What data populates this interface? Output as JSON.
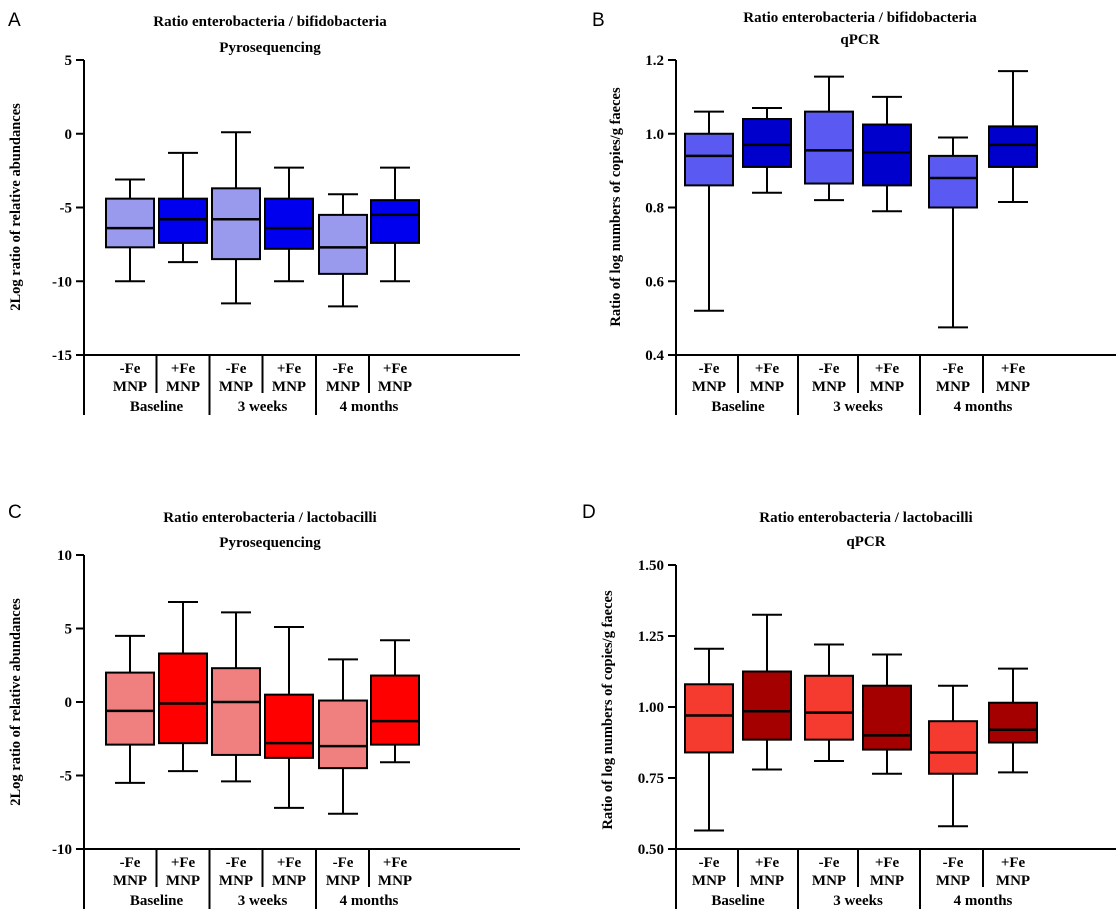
{
  "figure": {
    "panels": [
      {
        "letter": "A",
        "title": [
          "Ratio enterobacteria / bifidobacteria",
          "Pyrosequencing"
        ]
      },
      {
        "letter": "B",
        "title": [
          "Ratio enterobacteria / bifidobacteria",
          "qPCR"
        ]
      },
      {
        "letter": "C",
        "title": [
          "Ratio enterobacteria / lactobacilli",
          "Pyrosequencing"
        ]
      },
      {
        "letter": "D",
        "title": [
          "Ratio enterobacteria / lactobacilli",
          "qPCR"
        ]
      }
    ]
  },
  "chart_data": [
    {
      "panel": "A",
      "type": "box",
      "title": "Ratio enterobacteria / bifidobacteria",
      "subtitle": "Pyrosequencing",
      "ylabel": "2Log ratio of relative abundances",
      "ylim": [
        -15,
        5
      ],
      "yticks": [
        "5",
        "0",
        "-5",
        "-10",
        "-15"
      ],
      "ytick_values": [
        5,
        0,
        -5,
        -10,
        -15
      ],
      "categories": [
        [
          "-Fe",
          "MNP"
        ],
        [
          "+Fe",
          "MNP"
        ],
        [
          "-Fe",
          "MNP"
        ],
        [
          "+Fe",
          "MNP"
        ],
        [
          "-Fe",
          "MNP"
        ],
        [
          "+Fe",
          "MNP"
        ]
      ],
      "groups": [
        "Baseline",
        "3 weeks",
        "4 months"
      ],
      "colors": [
        "#9999ee",
        "#0000ee",
        "#9999ee",
        "#0000ee",
        "#9999ee",
        "#0000ee"
      ],
      "boxes": [
        {
          "min": -10.0,
          "q1": -7.7,
          "median": -6.4,
          "q3": -4.4,
          "max": -3.1
        },
        {
          "min": -8.7,
          "q1": -7.4,
          "median": -5.8,
          "q3": -4.4,
          "max": -1.3
        },
        {
          "min": -11.5,
          "q1": -8.5,
          "median": -5.8,
          "q3": -3.7,
          "max": 0.1
        },
        {
          "min": -10.0,
          "q1": -7.8,
          "median": -6.4,
          "q3": -4.4,
          "max": -2.3
        },
        {
          "min": -11.7,
          "q1": -9.5,
          "median": -7.7,
          "q3": -5.5,
          "max": -4.1
        },
        {
          "min": -10.0,
          "q1": -7.4,
          "median": -5.5,
          "q3": -4.5,
          "max": -2.3
        }
      ]
    },
    {
      "panel": "B",
      "type": "box",
      "title": "Ratio enterobacteria / bifidobacteria",
      "subtitle": "qPCR",
      "ylabel": "Ratio of log numbers of copies/g faeces",
      "ylim": [
        0.4,
        1.2
      ],
      "yticks": [
        "1.2",
        "1.0",
        "0.8",
        "0.6",
        "0.4"
      ],
      "ytick_values": [
        1.2,
        1.0,
        0.8,
        0.6,
        0.4
      ],
      "categories": [
        [
          "-Fe",
          "MNP"
        ],
        [
          "+Fe",
          "MNP"
        ],
        [
          "-Fe",
          "MNP"
        ],
        [
          "+Fe",
          "MNP"
        ],
        [
          "-Fe",
          "MNP"
        ],
        [
          "+Fe",
          "MNP"
        ]
      ],
      "groups": [
        "Baseline",
        "3 weeks",
        "4 months"
      ],
      "colors": [
        "#5a5af2",
        "#0000cc",
        "#5a5af2",
        "#0000cc",
        "#5a5af2",
        "#0000cc"
      ],
      "boxes": [
        {
          "min": 0.52,
          "q1": 0.86,
          "median": 0.94,
          "q3": 1.0,
          "max": 1.06
        },
        {
          "min": 0.84,
          "q1": 0.91,
          "median": 0.97,
          "q3": 1.04,
          "max": 1.07
        },
        {
          "min": 0.82,
          "q1": 0.865,
          "median": 0.955,
          "q3": 1.06,
          "max": 1.155
        },
        {
          "min": 0.79,
          "q1": 0.86,
          "median": 0.95,
          "q3": 1.025,
          "max": 1.1
        },
        {
          "min": 0.475,
          "q1": 0.8,
          "median": 0.88,
          "q3": 0.94,
          "max": 0.99
        },
        {
          "min": 0.815,
          "q1": 0.91,
          "median": 0.97,
          "q3": 1.02,
          "max": 1.17
        }
      ]
    },
    {
      "panel": "C",
      "type": "box",
      "title": "Ratio enterobacteria / lactobacilli",
      "subtitle": "Pyrosequencing",
      "ylabel": "2Log ratio of relative abundances",
      "ylim": [
        -10,
        10
      ],
      "yticks": [
        "10",
        "5",
        "0",
        "-5",
        "-10"
      ],
      "ytick_values": [
        10,
        5,
        0,
        -5,
        -10
      ],
      "categories": [
        [
          "-Fe",
          "MNP"
        ],
        [
          "+Fe",
          "MNP"
        ],
        [
          "-Fe",
          "MNP"
        ],
        [
          "+Fe",
          "MNP"
        ],
        [
          "-Fe",
          "MNP"
        ],
        [
          "+Fe",
          "MNP"
        ]
      ],
      "groups": [
        "Baseline",
        "3 weeks",
        "4 months"
      ],
      "colors": [
        "#f08080",
        "#ff0000",
        "#f08080",
        "#ff0000",
        "#f08080",
        "#ff0000"
      ],
      "boxes": [
        {
          "min": -5.5,
          "q1": -2.9,
          "median": -0.6,
          "q3": 2.0,
          "max": 4.5
        },
        {
          "min": -4.7,
          "q1": -2.8,
          "median": -0.1,
          "q3": 3.3,
          "max": 6.8
        },
        {
          "min": -5.4,
          "q1": -3.6,
          "median": 0.0,
          "q3": 2.3,
          "max": 6.1
        },
        {
          "min": -7.2,
          "q1": -3.8,
          "median": -2.8,
          "q3": 0.5,
          "max": 5.1
        },
        {
          "min": -7.6,
          "q1": -4.5,
          "median": -3.0,
          "q3": 0.1,
          "max": 2.9
        },
        {
          "min": -4.1,
          "q1": -2.9,
          "median": -1.3,
          "q3": 1.8,
          "max": 4.2
        }
      ]
    },
    {
      "panel": "D",
      "type": "box",
      "title": "Ratio enterobacteria / lactobacilli",
      "subtitle": "qPCR",
      "ylabel": "Ratio of log numbers of copies/g faeces",
      "ylim": [
        0.5,
        1.5
      ],
      "yticks": [
        "1.50",
        "1.25",
        "1.00",
        "0.75",
        "0.50"
      ],
      "ytick_values": [
        1.5,
        1.25,
        1.0,
        0.75,
        0.5
      ],
      "categories": [
        [
          "-Fe",
          "MNP"
        ],
        [
          "+Fe",
          "MNP"
        ],
        [
          "-Fe",
          "MNP"
        ],
        [
          "+Fe",
          "MNP"
        ],
        [
          "-Fe",
          "MNP"
        ],
        [
          "+Fe",
          "MNP"
        ]
      ],
      "groups": [
        "Baseline",
        "3 weeks",
        "4 months"
      ],
      "colors": [
        "#f53b30",
        "#a50000",
        "#f53b30",
        "#a50000",
        "#f53b30",
        "#a50000"
      ],
      "boxes": [
        {
          "min": 0.565,
          "q1": 0.84,
          "median": 0.97,
          "q3": 1.08,
          "max": 1.205
        },
        {
          "min": 0.78,
          "q1": 0.885,
          "median": 0.985,
          "q3": 1.125,
          "max": 1.325
        },
        {
          "min": 0.81,
          "q1": 0.885,
          "median": 0.98,
          "q3": 1.11,
          "max": 1.22
        },
        {
          "min": 0.765,
          "q1": 0.85,
          "median": 0.9,
          "q3": 1.075,
          "max": 1.185
        },
        {
          "min": 0.58,
          "q1": 0.765,
          "median": 0.84,
          "q3": 0.95,
          "max": 1.075
        },
        {
          "min": 0.77,
          "q1": 0.875,
          "median": 0.92,
          "q3": 1.015,
          "max": 1.135
        }
      ]
    }
  ]
}
